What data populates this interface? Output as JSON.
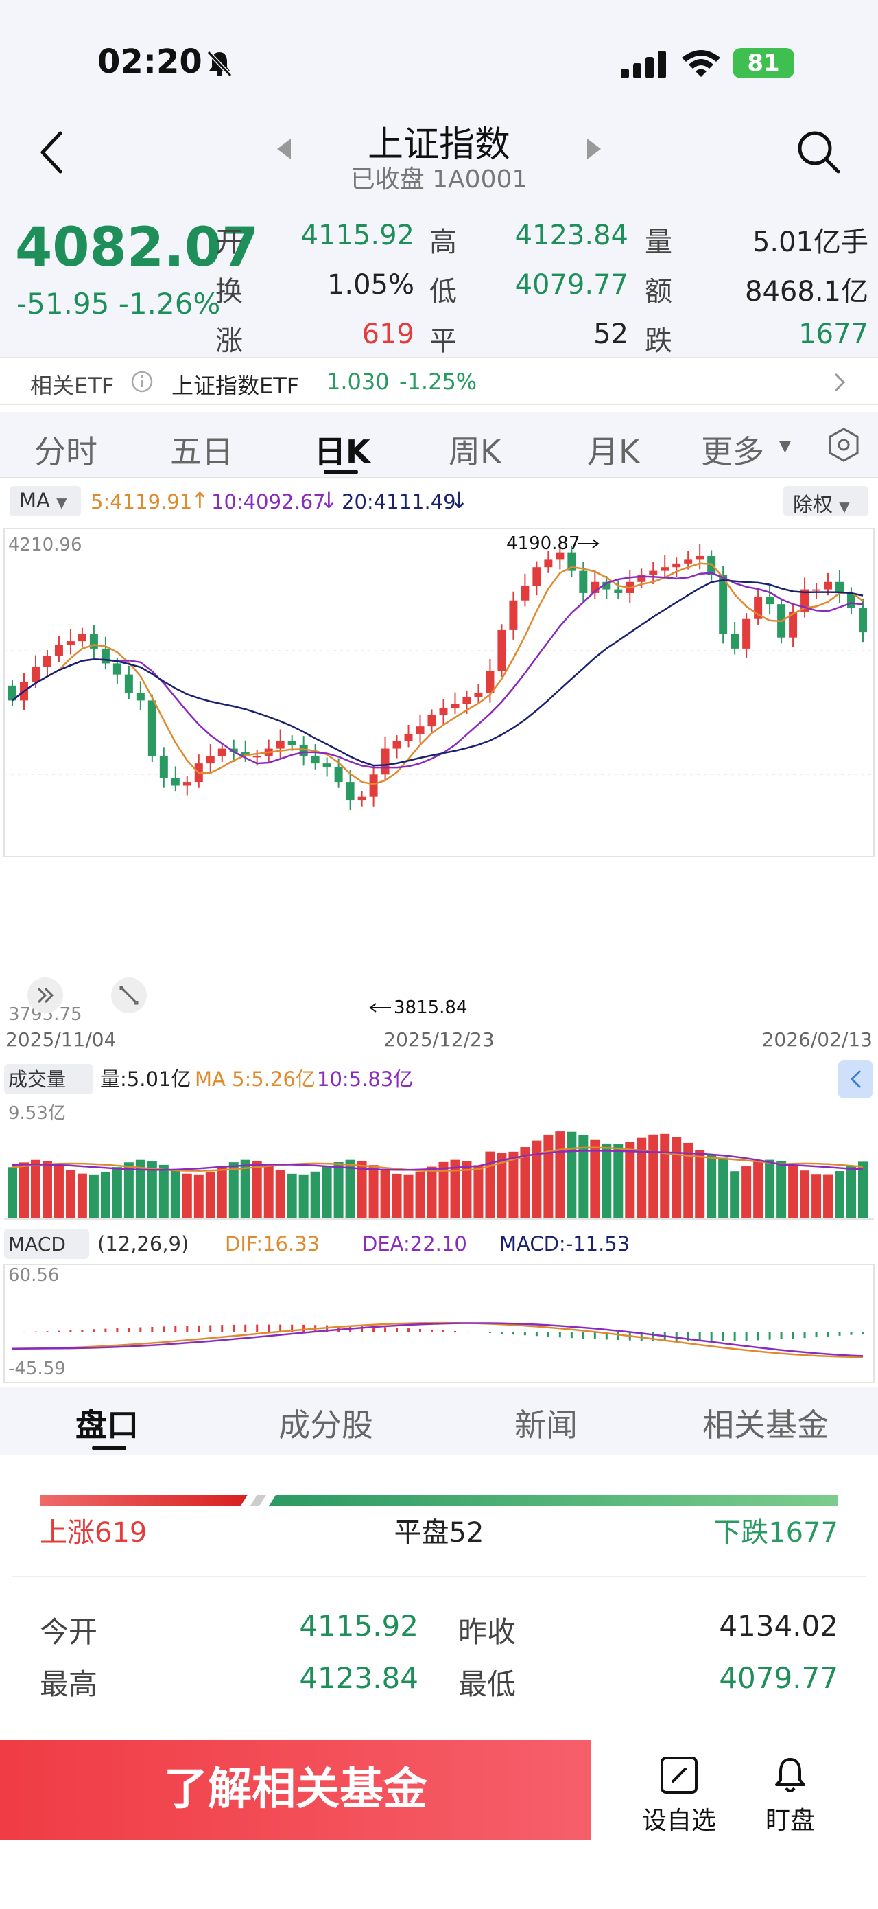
{
  "status": {
    "time": "02:20",
    "battery": "81"
  },
  "nav": {
    "title": "上证指数",
    "subtitle": "已收盘 1A0001"
  },
  "quote": {
    "price": "4082.07",
    "change": "-51.95 -1.26%",
    "rows": [
      [
        {
          "label": "开",
          "value": "4115.92",
          "color": "green"
        },
        {
          "label": "高",
          "value": "4123.84",
          "color": "green"
        },
        {
          "label": "量",
          "value": "5.01亿手",
          "color": "dark"
        }
      ],
      [
        {
          "label": "换",
          "value": "1.05%",
          "color": "dark"
        },
        {
          "label": "低",
          "value": "4079.77",
          "color": "green"
        },
        {
          "label": "额",
          "value": "8468.1亿",
          "color": "dark"
        }
      ],
      [
        {
          "label": "涨",
          "value": "619",
          "color": "red"
        },
        {
          "label": "平",
          "value": "52",
          "color": "dark"
        },
        {
          "label": "跌",
          "value": "1677",
          "color": "green"
        }
      ]
    ]
  },
  "etf": {
    "label": "相关ETF",
    "name": "上证指数ETF",
    "price": "1.030",
    "change": "-1.25%"
  },
  "period_tabs": [
    "分时",
    "五日",
    "日K",
    "周K",
    "月K",
    "更多"
  ],
  "active_period": 2,
  "ma_legend": {
    "selector": "MA",
    "ma5": "5:4119.91",
    "ma10": "10:4092.67",
    "ma20": "20:4111.49",
    "adjust": "除权"
  },
  "kline": {
    "y_max_label": "4210.96",
    "y_min_label": "3795.75",
    "high_marker": "4190.87",
    "low_marker": "3815.84",
    "dates": [
      "2025/11/04",
      "2025/12/23",
      "2026/02/13"
    ]
  },
  "volume": {
    "selector": "成交量",
    "vol": "量:5.01亿",
    "ma5": "MA 5:5.26亿",
    "ma10": "10:5.83亿",
    "max_label": "9.53亿"
  },
  "macd": {
    "selector": "MACD",
    "params": "(12,26,9)",
    "dif": "DIF:16.33",
    "dea": "DEA:22.10",
    "macd": "MACD:-11.53",
    "max_label": "60.56",
    "min_label": "-45.59"
  },
  "bottom_tabs": [
    "盘口",
    "成分股",
    "新闻",
    "相关基金"
  ],
  "breadth": {
    "up": "上涨619",
    "flat": "平盘52",
    "down": "下跌1677",
    "up_ratio": 0.26,
    "flat_ratio": 0.02
  },
  "panel": {
    "rows": [
      [
        {
          "label": "今开",
          "value": "4115.92",
          "color": "green"
        },
        {
          "label": "昨收",
          "value": "4134.02",
          "color": "dark"
        }
      ],
      [
        {
          "label": "最高",
          "value": "4123.84",
          "color": "green"
        },
        {
          "label": "最低",
          "value": "4079.77",
          "color": "green"
        }
      ]
    ]
  },
  "cta": {
    "label": "了解相关基金",
    "watch": "设自选",
    "monitor": "盯盘"
  },
  "colors": {
    "up": "#e23c3c",
    "down": "#2a9a63",
    "ma5": "#e08a2e",
    "ma10": "#8a2bc0",
    "ma20": "#1a2270"
  }
}
